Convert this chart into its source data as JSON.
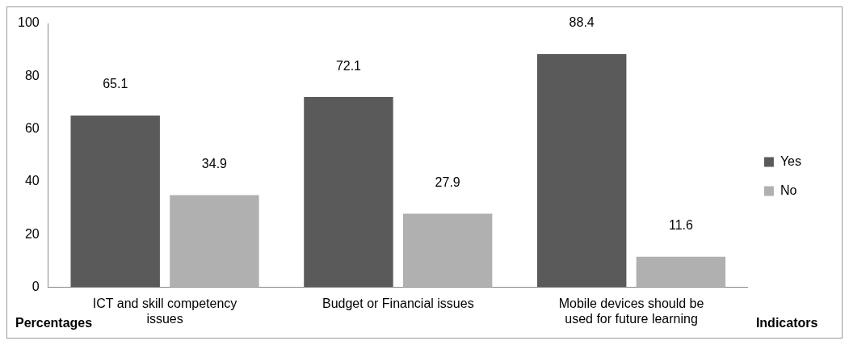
{
  "chart_data": {
    "type": "bar",
    "xlabel": "Indicators",
    "ylabel": "Percentages",
    "categories": [
      "ICT and skill competency issues",
      "Budget or Financial issues",
      "Mobile devices should be used for future learning"
    ],
    "series": [
      {
        "name": "Yes",
        "color": "#5a5a5a",
        "values": [
          65.1,
          72.1,
          88.4
        ]
      },
      {
        "name": "No",
        "color": "#b0b0b0",
        "values": [
          34.9,
          27.9,
          11.6
        ]
      }
    ],
    "ylim": [
      0,
      100
    ],
    "yticks": [
      0,
      20,
      40,
      60,
      80,
      100
    ],
    "grid": false,
    "legend": "right",
    "data_labels": true
  }
}
